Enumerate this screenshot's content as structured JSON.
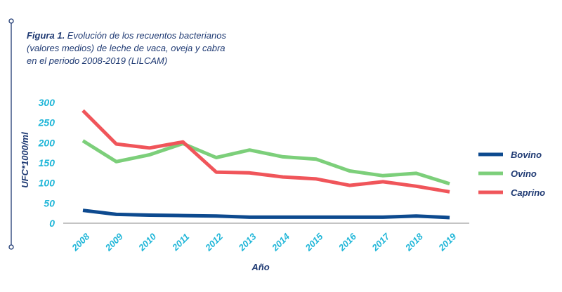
{
  "caption": {
    "lead": "Figura 1.",
    "text": " Evolución de los recuentos bacterianos (valores medios) de leche de vaca, oveja y cabra en el periodo 2008-2019 (LILCAM)"
  },
  "colors": {
    "accent": "#1f3a73",
    "tick": "#1fb6d8",
    "tick_faded": "#bfe9f3",
    "axis": "#8a8a8a"
  },
  "chart_data": {
    "type": "line",
    "title": "Figura 1. Evolución de los recuentos bacterianos (valores medios) de leche de vaca, oveja y cabra en el periodo 2008-2019 (LILCAM)",
    "xlabel": "Año",
    "ylabel": "UFC*1000/ml",
    "x": [
      "2008",
      "2009",
      "2010",
      "2011",
      "2012",
      "2013",
      "2014",
      "2015",
      "2016",
      "2017",
      "2018",
      "2019"
    ],
    "ylim": [
      0,
      300
    ],
    "yticks": [
      0,
      50,
      100,
      150,
      200,
      250,
      300
    ],
    "grid": false,
    "legend_position": "right",
    "series": [
      {
        "name": "Bovino",
        "color": "#0d4a8f",
        "values": [
          32,
          22,
          20,
          19,
          18,
          15,
          15,
          15,
          15,
          15,
          18,
          14
        ]
      },
      {
        "name": "Ovino",
        "color": "#7ccf7a",
        "values": [
          205,
          153,
          170,
          198,
          163,
          182,
          165,
          159,
          130,
          118,
          124,
          98
        ]
      },
      {
        "name": "Caprino",
        "color": "#f0555a",
        "values": [
          280,
          197,
          187,
          202,
          127,
          125,
          115,
          110,
          94,
          103,
          92,
          78
        ]
      }
    ]
  }
}
